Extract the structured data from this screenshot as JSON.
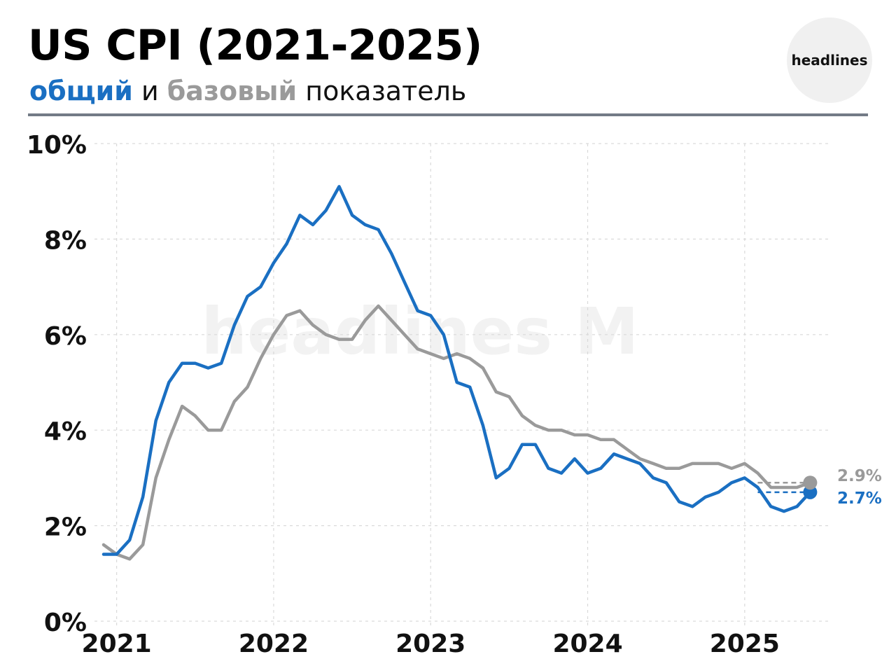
{
  "header": {
    "title": "US CPI (2021-2025)",
    "subtitle_blue": "общий",
    "subtitle_mid": " и ",
    "subtitle_gray": "базовый",
    "subtitle_end": " показатель",
    "logo_text": "headlines"
  },
  "watermark": "headlines M",
  "colors": {
    "headline": "#1a6fc2",
    "core": "#9a9a9a",
    "grid": "#d9d9d9"
  },
  "chart_data": {
    "type": "line",
    "xlim": [
      2020.917,
      2025.5
    ],
    "ylim": [
      0,
      10
    ],
    "x_ticks": [
      2021,
      2022,
      2023,
      2024,
      2025
    ],
    "x_tick_labels": [
      "2021",
      "2022",
      "2023",
      "2024",
      "2025"
    ],
    "y_ticks": [
      0,
      2,
      4,
      6,
      8,
      10
    ],
    "y_tick_labels": [
      "0%",
      "2%",
      "4%",
      "6%",
      "8%",
      "10%"
    ],
    "grid": true,
    "series": [
      {
        "key": "headline",
        "x": [
          2020.917,
          2021.0,
          2021.083,
          2021.167,
          2021.25,
          2021.333,
          2021.417,
          2021.5,
          2021.583,
          2021.667,
          2021.75,
          2021.833,
          2021.917,
          2022.0,
          2022.083,
          2022.167,
          2022.25,
          2022.333,
          2022.417,
          2022.5,
          2022.583,
          2022.667,
          2022.75,
          2022.833,
          2022.917,
          2023.0,
          2023.083,
          2023.167,
          2023.25,
          2023.333,
          2023.417,
          2023.5,
          2023.583,
          2023.667,
          2023.75,
          2023.833,
          2023.917,
          2024.0,
          2024.083,
          2024.167,
          2024.25,
          2024.333,
          2024.417,
          2024.5,
          2024.583,
          2024.667,
          2024.75,
          2024.833,
          2024.917,
          2025.0,
          2025.083,
          2025.167,
          2025.25,
          2025.333,
          2025.417
        ],
        "values": [
          1.4,
          1.4,
          1.7,
          2.6,
          4.2,
          5.0,
          5.4,
          5.4,
          5.3,
          5.4,
          6.2,
          6.8,
          7.0,
          7.5,
          7.9,
          8.5,
          8.3,
          8.6,
          9.1,
          8.5,
          8.3,
          8.2,
          7.7,
          7.1,
          6.5,
          6.4,
          6.0,
          5.0,
          4.9,
          4.1,
          3.0,
          3.2,
          3.7,
          3.7,
          3.2,
          3.1,
          3.4,
          3.1,
          3.2,
          3.5,
          3.4,
          3.3,
          3.0,
          2.9,
          2.5,
          2.4,
          2.6,
          2.7,
          2.9,
          3.0,
          2.8,
          2.4,
          2.3,
          2.4,
          2.7
        ],
        "end_label": "2.7%"
      },
      {
        "key": "core",
        "x": [
          2020.917,
          2021.0,
          2021.083,
          2021.167,
          2021.25,
          2021.333,
          2021.417,
          2021.5,
          2021.583,
          2021.667,
          2021.75,
          2021.833,
          2021.917,
          2022.0,
          2022.083,
          2022.167,
          2022.25,
          2022.333,
          2022.417,
          2022.5,
          2022.583,
          2022.667,
          2022.75,
          2022.833,
          2022.917,
          2023.0,
          2023.083,
          2023.167,
          2023.25,
          2023.333,
          2023.417,
          2023.5,
          2023.583,
          2023.667,
          2023.75,
          2023.833,
          2023.917,
          2024.0,
          2024.083,
          2024.167,
          2024.25,
          2024.333,
          2024.417,
          2024.5,
          2024.583,
          2024.667,
          2024.75,
          2024.833,
          2024.917,
          2025.0,
          2025.083,
          2025.167,
          2025.25,
          2025.333,
          2025.417
        ],
        "values": [
          1.6,
          1.4,
          1.3,
          1.6,
          3.0,
          3.8,
          4.5,
          4.3,
          4.0,
          4.0,
          4.6,
          4.9,
          5.5,
          6.0,
          6.4,
          6.5,
          6.2,
          6.0,
          5.9,
          5.9,
          6.3,
          6.6,
          6.3,
          6.0,
          5.7,
          5.6,
          5.5,
          5.6,
          5.5,
          5.3,
          4.8,
          4.7,
          4.3,
          4.1,
          4.0,
          4.0,
          3.9,
          3.9,
          3.8,
          3.8,
          3.6,
          3.4,
          3.3,
          3.2,
          3.2,
          3.3,
          3.3,
          3.3,
          3.2,
          3.3,
          3.1,
          2.8,
          2.8,
          2.8,
          2.9
        ],
        "end_label": "2.9%"
      }
    ]
  }
}
